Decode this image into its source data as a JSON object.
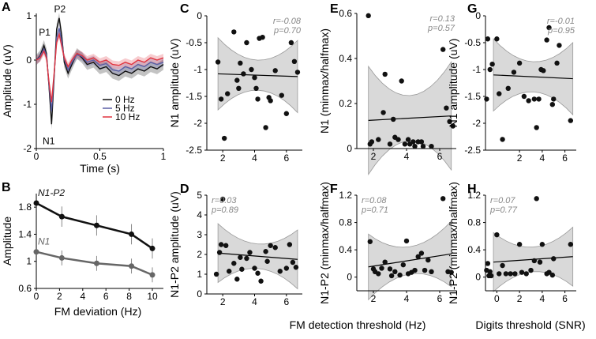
{
  "colors": {
    "black": "#111111",
    "gray": "#666666",
    "band": "#d9d9d9",
    "blue": "#5a5fa6",
    "red": "#e0333f",
    "stat": "#888888"
  },
  "chart_data": [
    {
      "panel": "A",
      "type": "line",
      "xlabel": "Time (s)",
      "ylabel": "Amplitude (uV)",
      "xlim": [
        0,
        1
      ],
      "ylim": [
        -2,
        1
      ],
      "xticks": [
        "0",
        "0.5",
        "1"
      ],
      "yticks": [
        "-2",
        "-1",
        "0",
        "1"
      ],
      "annotations": [
        "P1",
        "P2",
        "N1"
      ],
      "legend": [
        "0 Hz",
        "5 Hz",
        "10 Hz"
      ],
      "legend_position": "bottom-right",
      "x": [
        0,
        0.03,
        0.06,
        0.08,
        0.1,
        0.12,
        0.14,
        0.16,
        0.18,
        0.2,
        0.22,
        0.25,
        0.28,
        0.32,
        0.36,
        0.4,
        0.45,
        0.5,
        0.55,
        0.6,
        0.65,
        0.7,
        0.75,
        0.8,
        0.85,
        0.9,
        0.95,
        1.0
      ],
      "series": [
        {
          "name": "0 Hz",
          "values": [
            0,
            0.1,
            0.33,
            0.15,
            -0.6,
            -1.45,
            -0.4,
            0.7,
            0.95,
            0.55,
            -0.05,
            -0.3,
            -0.1,
            0.15,
            0.05,
            -0.1,
            -0.05,
            -0.2,
            -0.15,
            -0.3,
            -0.35,
            -0.25,
            -0.3,
            -0.2,
            -0.25,
            -0.15,
            -0.2,
            -0.1
          ]
        },
        {
          "name": "5 Hz",
          "values": [
            0,
            0.08,
            0.25,
            0.1,
            -0.55,
            -1.15,
            -0.35,
            0.5,
            0.72,
            0.42,
            0.02,
            -0.22,
            -0.05,
            0.12,
            0.08,
            -0.05,
            0.0,
            -0.12,
            -0.08,
            -0.22,
            -0.25,
            -0.15,
            -0.2,
            -0.1,
            -0.15,
            -0.05,
            -0.1,
            -0.05
          ]
        },
        {
          "name": "10 Hz",
          "values": [
            0,
            0.05,
            0.2,
            0.05,
            -0.5,
            -0.95,
            -0.3,
            0.4,
            0.58,
            0.32,
            0.05,
            -0.15,
            0.0,
            0.15,
            0.1,
            0.0,
            0.05,
            -0.05,
            0.0,
            -0.1,
            -0.12,
            -0.05,
            -0.1,
            0.0,
            -0.05,
            0.05,
            0.0,
            0.05
          ]
        }
      ]
    },
    {
      "panel": "B",
      "type": "line",
      "xlabel": "FM deviation (Hz)",
      "ylabel": "Amplitude",
      "xlim": [
        0,
        10
      ],
      "ylim": [
        0.6,
        2.0
      ],
      "xticks": [
        "0",
        "2",
        "4",
        "6",
        "8",
        "10"
      ],
      "yticks": [
        "0.6",
        "1",
        "1.4",
        "1.8"
      ],
      "x": [
        0,
        2.2,
        5.2,
        8.2,
        10
      ],
      "series": [
        {
          "name": "N1-P2",
          "values": [
            1.86,
            1.66,
            1.53,
            1.4,
            1.19
          ],
          "err": [
            0.03,
            0.15,
            0.15,
            0.15,
            0.15
          ]
        },
        {
          "name": "N1",
          "values": [
            1.14,
            1.05,
            0.97,
            0.93,
            0.8
          ],
          "err": [
            0.03,
            0.11,
            0.11,
            0.11,
            0.11
          ]
        }
      ]
    },
    {
      "panel": "C",
      "type": "scatter",
      "ylabel": "N1 amplitude (uV)",
      "xlim": [
        1,
        7
      ],
      "ylim": [
        -2.5,
        0
      ],
      "xticks": [
        "2",
        "4",
        "6"
      ],
      "yticks": [
        "0",
        "-0.5",
        "-1",
        "-1.5",
        "-2",
        "-2.5"
      ],
      "stat_r": "r=-0.08",
      "stat_p": "p=0.70",
      "fit": [
        -1.08,
        -1.13
      ],
      "band_width": 0.28,
      "points": [
        [
          1.7,
          -0.86
        ],
        [
          1.9,
          -1.55
        ],
        [
          2.1,
          -2.28
        ],
        [
          2.3,
          -1.45
        ],
        [
          2.7,
          -0.3
        ],
        [
          2.9,
          -1.2
        ],
        [
          3.0,
          -1.35
        ],
        [
          3.1,
          -0.88
        ],
        [
          3.3,
          -1.08
        ],
        [
          3.5,
          -0.5
        ],
        [
          3.8,
          -1.0
        ],
        [
          4.0,
          -1.15
        ],
        [
          4.1,
          -1.35
        ],
        [
          4.2,
          -1.55
        ],
        [
          4.3,
          -0.42
        ],
        [
          4.5,
          -0.4
        ],
        [
          4.7,
          -2.08
        ],
        [
          4.9,
          -1.52
        ],
        [
          5.0,
          -1.58
        ],
        [
          5.3,
          -1.02
        ],
        [
          5.7,
          -1.48
        ],
        [
          6.0,
          -1.82
        ],
        [
          6.3,
          -0.5
        ],
        [
          6.5,
          -0.85
        ],
        [
          6.7,
          -1.05
        ]
      ]
    },
    {
      "panel": "D",
      "type": "scatter",
      "ylabel": "N1-P2 amplitude (uV)",
      "xlim": [
        1,
        7
      ],
      "ylim": [
        0,
        5
      ],
      "xticks": [
        "2",
        "4",
        "6"
      ],
      "yticks": [
        "0",
        "1",
        "2",
        "3",
        "4",
        "5"
      ],
      "stat_r": "r=0.03",
      "stat_p": "p=0.89",
      "fit": [
        2.07,
        1.75
      ],
      "band_width": 0.62,
      "points": [
        [
          1.6,
          1.0
        ],
        [
          1.8,
          2.1
        ],
        [
          1.9,
          2.5
        ],
        [
          2.0,
          4.8
        ],
        [
          2.2,
          2.45
        ],
        [
          2.4,
          1.15
        ],
        [
          2.7,
          1.55
        ],
        [
          2.9,
          0.75
        ],
        [
          3.1,
          1.85
        ],
        [
          3.2,
          1.25
        ],
        [
          3.5,
          1.8
        ],
        [
          3.7,
          2.1
        ],
        [
          4.0,
          1.3
        ],
        [
          4.2,
          1.05
        ],
        [
          4.4,
          0.65
        ],
        [
          4.7,
          2.15
        ],
        [
          4.8,
          1.65
        ],
        [
          5.0,
          2.45
        ],
        [
          5.3,
          2.35
        ],
        [
          5.6,
          1.15
        ],
        [
          6.0,
          1.3
        ],
        [
          6.2,
          2.5
        ],
        [
          6.4,
          1.6
        ],
        [
          6.6,
          1.35
        ]
      ]
    },
    {
      "panel": "E",
      "type": "scatter",
      "ylabel": "N1 (minmax/halfmax)",
      "xlim": [
        1,
        7
      ],
      "ylim": [
        0,
        0.6
      ],
      "xticks": [
        "2",
        "4",
        "6"
      ],
      "yticks": [
        "0",
        "0.2",
        "0.4",
        "0.6"
      ],
      "stat_r": "r=0.13",
      "stat_p": "p=0.57",
      "fit": [
        0.125,
        0.145
      ],
      "band_width": 0.1,
      "points": [
        [
          1.7,
          0.59
        ],
        [
          1.8,
          0.02
        ],
        [
          1.9,
          0.03
        ],
        [
          2.3,
          0.04
        ],
        [
          2.6,
          0.16
        ],
        [
          2.7,
          0.33
        ],
        [
          3.0,
          0.02
        ],
        [
          3.2,
          0.13
        ],
        [
          3.3,
          0.05
        ],
        [
          3.5,
          0.04
        ],
        [
          3.7,
          0.3
        ],
        [
          3.9,
          0.02
        ],
        [
          4.1,
          0.04
        ],
        [
          4.2,
          0.02
        ],
        [
          4.4,
          0.03
        ],
        [
          4.5,
          0.01
        ],
        [
          4.7,
          0.03
        ],
        [
          4.9,
          0.03
        ],
        [
          5.0,
          0.01
        ],
        [
          5.5,
          0.01
        ],
        [
          6.2,
          0.44
        ],
        [
          6.4,
          0.18
        ],
        [
          6.6,
          0.12
        ],
        [
          6.8,
          0.1
        ]
      ]
    },
    {
      "panel": "F",
      "type": "scatter",
      "ylabel": "N1-P2 (minmax/halfmax)",
      "xlim": [
        1,
        7
      ],
      "ylim": [
        -0.2,
        1.2
      ],
      "xticks": [
        "2",
        "4",
        "6"
      ],
      "yticks": [
        "0",
        "0.4",
        "0.8",
        "1.2"
      ],
      "stat_r": "r=0.08",
      "stat_p": "p=0.71",
      "fit": [
        0.15,
        0.34
      ],
      "band_width": 0.2,
      "points": [
        [
          1.8,
          0.52
        ],
        [
          2.0,
          0.12
        ],
        [
          2.1,
          0.08
        ],
        [
          2.3,
          0.05
        ],
        [
          2.5,
          0.13
        ],
        [
          2.7,
          0.22
        ],
        [
          3.0,
          0.12
        ],
        [
          3.1,
          0.02
        ],
        [
          3.3,
          0.08
        ],
        [
          3.6,
          0.03
        ],
        [
          3.8,
          0.18
        ],
        [
          4.0,
          0.53
        ],
        [
          4.1,
          0.05
        ],
        [
          4.3,
          0.07
        ],
        [
          4.5,
          0.1
        ],
        [
          4.7,
          0.3
        ],
        [
          4.9,
          0.35
        ],
        [
          5.1,
          0.1
        ],
        [
          5.3,
          0.25
        ],
        [
          5.5,
          0.08
        ],
        [
          6.2,
          1.15
        ],
        [
          6.5,
          0.08
        ],
        [
          6.7,
          0.07
        ]
      ]
    },
    {
      "panel": "G",
      "type": "scatter",
      "ylabel": "N1 amplitude (uV)",
      "xlim": [
        -1,
        7
      ],
      "ylim": [
        -2.5,
        0
      ],
      "xticks": [
        "2",
        "4",
        "6"
      ],
      "yticks": [
        "0",
        "-0.5",
        "-1",
        "-1.5",
        "-2",
        "-2.5"
      ],
      "stat_r": "r=-0.01",
      "stat_p": "p=0.95",
      "fit": [
        -1.1,
        -1.17
      ],
      "band_width": 0.28,
      "points": [
        [
          -0.9,
          -1.55
        ],
        [
          -0.8,
          -0.43
        ],
        [
          -0.6,
          -1.0
        ],
        [
          -0.4,
          -0.9
        ],
        [
          0.0,
          -0.43
        ],
        [
          0.2,
          -1.45
        ],
        [
          0.5,
          -2.3
        ],
        [
          1.0,
          -1.35
        ],
        [
          1.5,
          -1.05
        ],
        [
          2.0,
          -0.88
        ],
        [
          2.4,
          -1.5
        ],
        [
          2.8,
          -1.58
        ],
        [
          3.3,
          -1.55
        ],
        [
          3.5,
          -2.08
        ],
        [
          3.7,
          -1.55
        ],
        [
          3.9,
          -1.0
        ],
        [
          4.1,
          -1.02
        ],
        [
          4.4,
          -0.45
        ],
        [
          4.6,
          -0.22
        ],
        [
          4.9,
          -1.65
        ],
        [
          5.0,
          -1.55
        ],
        [
          5.3,
          -0.88
        ],
        [
          5.5,
          -0.55
        ],
        [
          6.5,
          -1.95
        ]
      ]
    },
    {
      "panel": "H",
      "type": "scatter",
      "ylabel": "N1-P2 (minmax/halfmax)",
      "xlim": [
        -1,
        7
      ],
      "ylim": [
        -0.2,
        1.2
      ],
      "xticks": [
        "0",
        "2",
        "4",
        "6"
      ],
      "yticks": [
        "0",
        "0.4",
        "0.8",
        "1.2"
      ],
      "stat_r": "r=0.07",
      "stat_p": "p=0.77",
      "fit": [
        0.22,
        0.3
      ],
      "band_width": 0.18,
      "points": [
        [
          -0.9,
          0.1
        ],
        [
          -0.8,
          0.2
        ],
        [
          -0.7,
          0.02
        ],
        [
          -0.6,
          0.08
        ],
        [
          -0.5,
          0.02
        ],
        [
          0.0,
          0.62
        ],
        [
          0.2,
          0.05
        ],
        [
          0.5,
          0.17
        ],
        [
          0.8,
          0.05
        ],
        [
          1.2,
          0.05
        ],
        [
          1.6,
          0.05
        ],
        [
          2.0,
          0.48
        ],
        [
          2.2,
          0.07
        ],
        [
          2.6,
          0.05
        ],
        [
          3.0,
          0.1
        ],
        [
          3.3,
          0.24
        ],
        [
          3.5,
          1.15
        ],
        [
          3.8,
          0.22
        ],
        [
          4.0,
          0.48
        ],
        [
          4.4,
          0.05
        ],
        [
          4.6,
          0.07
        ],
        [
          4.9,
          0.03
        ],
        [
          5.0,
          0.27
        ],
        [
          6.5,
          0.48
        ]
      ]
    }
  ],
  "shared": {
    "xlabel_middle": "FM detection threshold (Hz)",
    "xlabel_right": "Digits threshold (SNR)"
  },
  "panel_letters": [
    "A",
    "B",
    "C",
    "D",
    "E",
    "F",
    "G",
    "H"
  ]
}
